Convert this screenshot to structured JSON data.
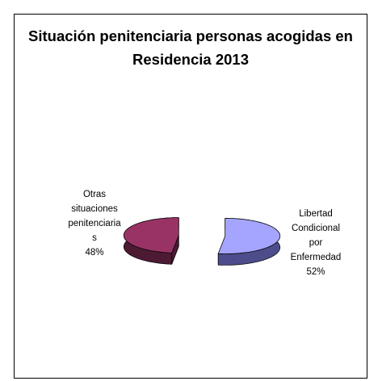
{
  "chart_data": {
    "type": "pie",
    "title": "Situación penitenciaria personas acogidas en Residencia 2013",
    "categories": [
      "Libertad Condicional por Enfermedad",
      "Otras situaciones penitenciarias"
    ],
    "values": [
      52,
      48
    ],
    "value_labels": [
      "52%",
      "48%"
    ],
    "colors": [
      "#a5a5ff",
      "#993366"
    ],
    "side_colors": [
      "#4d4d8c",
      "#4d1a33"
    ]
  }
}
